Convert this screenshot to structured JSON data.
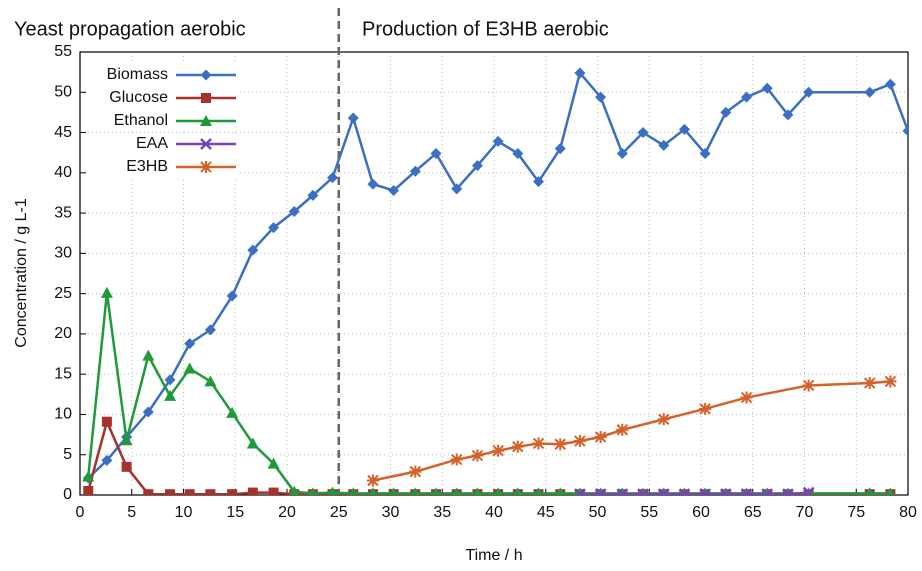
{
  "chart_data": {
    "type": "line",
    "annotations": [
      "Yeast propagation aerobic",
      "Production of E3HB aerobic"
    ],
    "vline": 25,
    "xlabel": "Time / h",
    "ylabel": "Concentration / g L-1",
    "xlim": [
      0,
      80
    ],
    "ylim": [
      0,
      55
    ],
    "xticks": [
      0,
      5,
      10,
      15,
      20,
      25,
      30,
      35,
      40,
      45,
      50,
      55,
      60,
      65,
      70,
      75,
      80
    ],
    "yticks": [
      0,
      5,
      10,
      15,
      20,
      25,
      30,
      35,
      40,
      45,
      50,
      55
    ],
    "grid": true,
    "legend": "upper left",
    "series": [
      {
        "name": "Biomass",
        "color": "#3a6fc4",
        "marker": "diamond",
        "x": [
          0.8,
          2.6,
          4.5,
          6.6,
          8.7,
          10.6,
          12.6,
          14.7,
          16.7,
          18.7,
          20.7,
          22.5,
          24.4,
          26.4,
          28.3,
          30.3,
          32.4,
          34.4,
          36.4,
          38.4,
          40.4,
          42.3,
          44.3,
          46.4,
          48.3,
          50.3,
          52.4,
          54.4,
          56.4,
          58.4,
          60.4,
          62.4,
          64.4,
          66.4,
          68.4,
          70.4,
          76.3,
          78.3,
          80
        ],
        "values": [
          2.1,
          4.3,
          7.2,
          10.3,
          14.3,
          18.8,
          20.5,
          24.7,
          30.4,
          33.2,
          35.2,
          37.2,
          39.4,
          46.8,
          38.6,
          37.8,
          40.2,
          42.4,
          38.0,
          40.9,
          43.9,
          42.4,
          38.9,
          43.0,
          52.4,
          49.4,
          42.4,
          45.0,
          43.4,
          45.4,
          42.4,
          47.5,
          49.4,
          50.5,
          47.2,
          50.0,
          50.0,
          51.0,
          45.2
        ]
      },
      {
        "name": "Glucose",
        "color": "#a8312c",
        "marker": "square",
        "x": [
          0.8,
          2.6,
          4.5,
          6.6,
          8.7,
          10.6,
          12.6,
          14.7,
          16.7,
          18.7,
          20.7,
          22.5,
          24.4,
          26.4,
          28.3,
          30.3,
          32.4,
          34.4,
          36.4,
          38.4,
          40.4,
          42.3,
          44.3,
          46.4,
          48.3,
          50.3,
          52.4,
          54.4,
          56.4,
          58.4,
          60.4,
          62.4,
          64.4,
          66.4,
          68.4,
          70.4,
          76.3,
          78.3
        ],
        "values": [
          0.5,
          9.1,
          3.5,
          0.1,
          0.1,
          0.1,
          0.1,
          0.1,
          0.3,
          0.3,
          0.1,
          0.1,
          0.1,
          0.1,
          0.1,
          0.1,
          0.1,
          0.1,
          0.1,
          0.1,
          0.1,
          0.1,
          0.1,
          0.1,
          0.1,
          0.1,
          0.1,
          0.1,
          0.1,
          0.1,
          0.1,
          0.1,
          0.1,
          0.1,
          0.1,
          0.1,
          0.1,
          0.1
        ]
      },
      {
        "name": "Ethanol",
        "color": "#1f9a3a",
        "marker": "triangle",
        "x": [
          0.8,
          2.6,
          4.5,
          6.6,
          8.7,
          10.6,
          12.6,
          14.7,
          16.7,
          18.7,
          20.7,
          22.5,
          24.4,
          26.4,
          28.3,
          30.3,
          32.4,
          34.4,
          36.4,
          38.4,
          40.4,
          42.3,
          44.3,
          46.4,
          48.3,
          50.3,
          52.4,
          54.4,
          56.4,
          58.4,
          60.4,
          62.4,
          64.4,
          66.4,
          68.4,
          70.4,
          76.3,
          78.3
        ],
        "values": [
          2.3,
          25.1,
          6.8,
          17.3,
          12.3,
          15.7,
          14.1,
          10.2,
          6.4,
          3.9,
          0.4,
          0.2,
          0.3,
          0.2,
          0.2,
          0.2,
          0.2,
          0.2,
          0.2,
          0.2,
          0.2,
          0.2,
          0.2,
          0.2,
          0.2,
          0.2,
          0.2,
          0.2,
          0.2,
          0.2,
          0.2,
          0.2,
          0.2,
          0.2,
          0.2,
          0.2,
          0.2,
          0.2
        ]
      },
      {
        "name": "EAA",
        "color": "#7b3fbf",
        "marker": "cross",
        "x": [
          48.3,
          50.3,
          52.4,
          54.4,
          56.4,
          58.4,
          60.4,
          62.4,
          64.4,
          66.4,
          68.4,
          70.4
        ],
        "values": [
          0.1,
          0.1,
          0.1,
          0.1,
          0.1,
          0.1,
          0.1,
          0.1,
          0.1,
          0.1,
          0.1,
          0.3
        ]
      },
      {
        "name": "E3HB",
        "color": "#d4622a",
        "marker": "asterisk",
        "x": [
          28.3,
          32.4,
          36.4,
          38.4,
          40.4,
          42.3,
          44.3,
          46.4,
          48.3,
          50.3,
          52.4,
          56.4,
          60.4,
          64.4,
          70.4,
          76.3,
          78.3
        ],
        "values": [
          1.8,
          2.9,
          4.4,
          4.9,
          5.5,
          6.0,
          6.4,
          6.3,
          6.7,
          7.2,
          8.1,
          9.4,
          10.7,
          12.1,
          13.6,
          13.9,
          14.1
        ]
      }
    ]
  }
}
